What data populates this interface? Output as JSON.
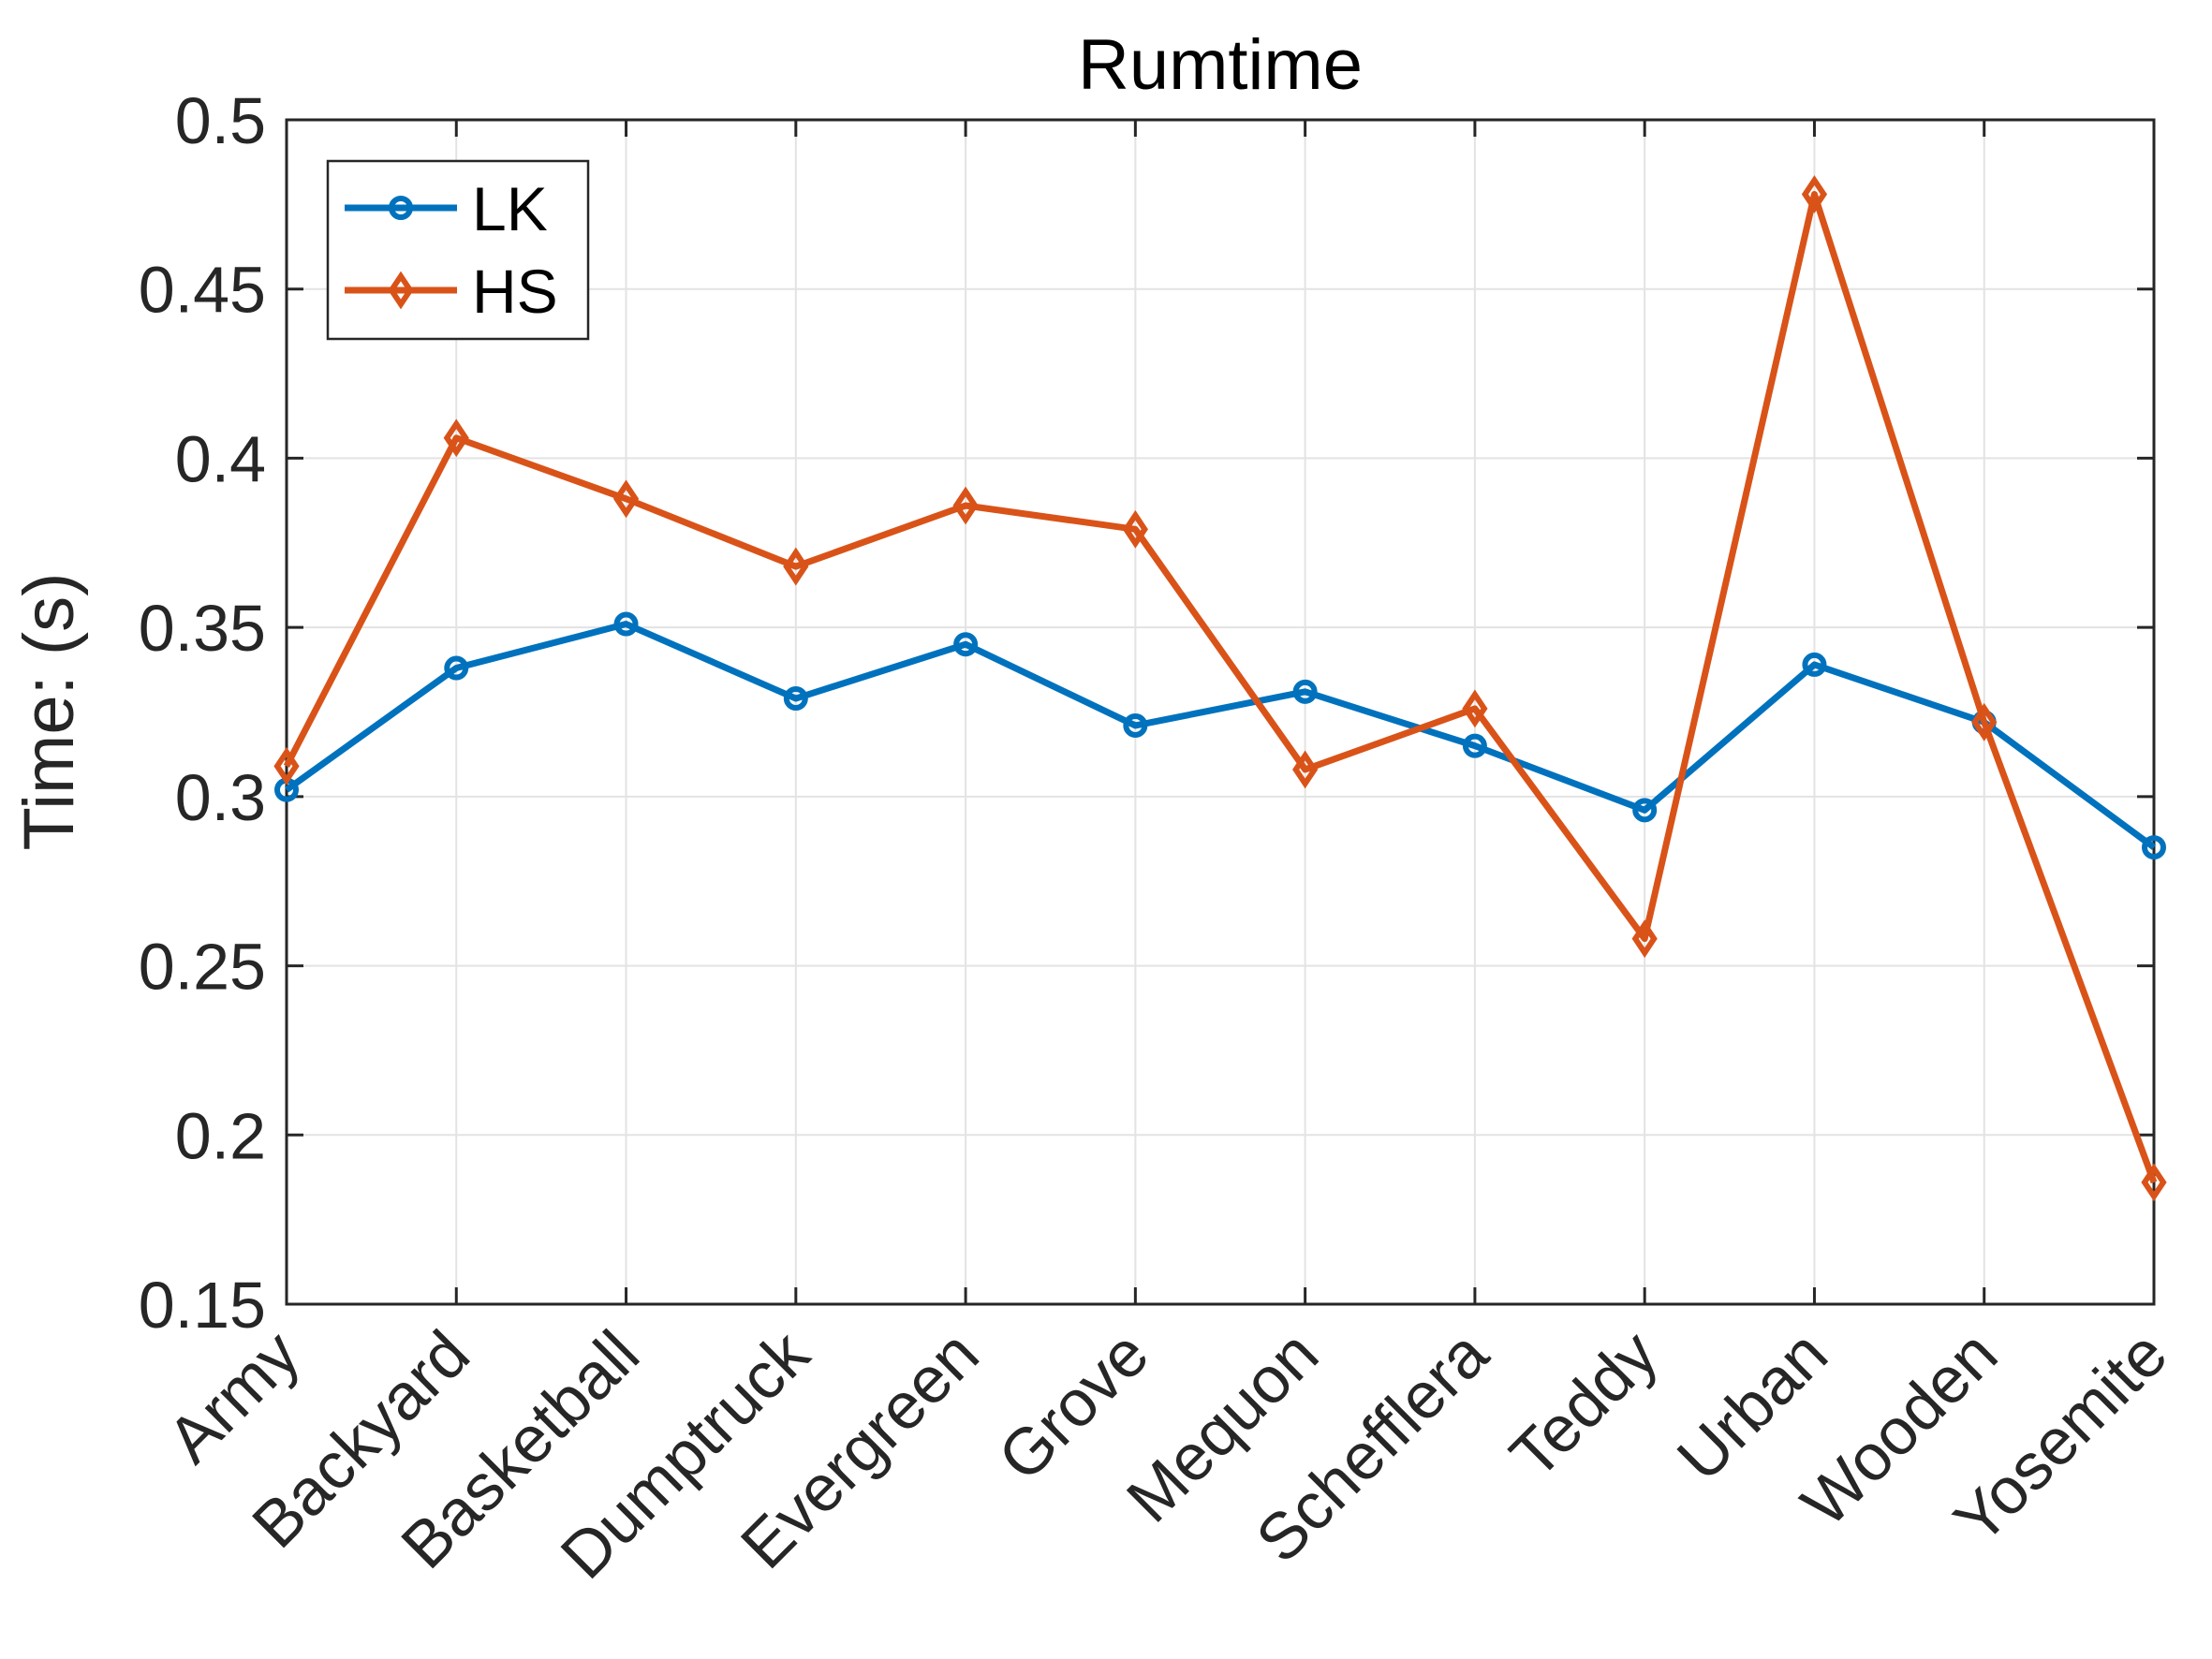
{
  "chart_data": {
    "type": "line",
    "title": "Rumtime",
    "xlabel": "",
    "ylabel": "Time: (s)",
    "categories": [
      "Army",
      "Backyard",
      "Basketball",
      "Dumptruck",
      "Evergreen",
      "Grove",
      "Mequon",
      "Schefflera",
      "Teddy",
      "Urban",
      "Wooden",
      "Yosemite"
    ],
    "ylim": [
      0.15,
      0.5
    ],
    "yticks": [
      "0.15",
      "0.2",
      "0.25",
      "0.3",
      "0.35",
      "0.4",
      "0.45",
      "0.5"
    ],
    "grid": true,
    "legend_position": "top-left",
    "series": [
      {
        "name": "LK",
        "color": "#0072BD",
        "marker": "circle",
        "values": [
          0.302,
          0.338,
          0.351,
          0.329,
          0.345,
          0.321,
          0.331,
          0.315,
          0.296,
          0.339,
          0.322,
          0.285
        ]
      },
      {
        "name": "HS",
        "color": "#D95319",
        "marker": "diamond",
        "values": [
          0.309,
          0.406,
          0.388,
          0.368,
          0.386,
          0.379,
          0.308,
          0.326,
          0.258,
          0.478,
          0.322,
          0.186
        ]
      }
    ]
  }
}
